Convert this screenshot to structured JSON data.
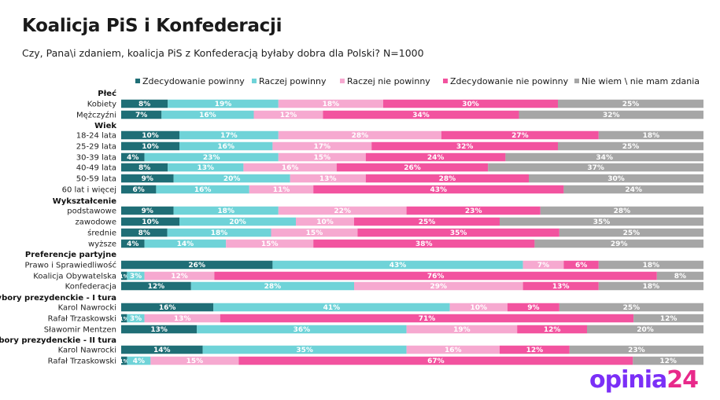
{
  "title": "Koalicja PiS i Konfederacji",
  "subtitle": "Czy, Pana\\i zdaniem, koalicja PiS z Konfederacją byłaby dobra dla Polski? N=1000",
  "brand": {
    "name": "opinia",
    "suffix": "24"
  },
  "chart_data": {
    "type": "bar",
    "orientation": "horizontal-stacked-100",
    "title": "Koalicja PiS i Konfederacji",
    "legend_position": "top",
    "series": [
      {
        "name": "Zdecydowanie powinny",
        "color": "#1f6e76"
      },
      {
        "name": "Raczej powinny",
        "color": "#6fd3d8"
      },
      {
        "name": "Raczej nie powinny",
        "color": "#f6a9d0"
      },
      {
        "name": "Zdecydowanie nie powinny",
        "color": "#f2539f"
      },
      {
        "name": "Nie wiem \\ nie mam zdania",
        "color": "#a6a6a6"
      }
    ],
    "groups": [
      {
        "title": "Płeć",
        "rows": [
          {
            "label": "Kobiety",
            "values": [
              8,
              19,
              18,
              30,
              25
            ]
          },
          {
            "label": "Mężczyźni",
            "values": [
              7,
              16,
              12,
              34,
              32
            ]
          }
        ]
      },
      {
        "title": "Wiek",
        "rows": [
          {
            "label": "18-24 lata",
            "values": [
              10,
              17,
              28,
              27,
              18
            ]
          },
          {
            "label": "25-29 lata",
            "values": [
              10,
              16,
              17,
              32,
              25
            ]
          },
          {
            "label": "30-39 lata",
            "values": [
              4,
              23,
              15,
              24,
              34
            ]
          },
          {
            "label": "40-49 lata",
            "values": [
              8,
              13,
              16,
              26,
              37
            ]
          },
          {
            "label": "50-59 lata",
            "values": [
              9,
              20,
              13,
              28,
              30
            ]
          },
          {
            "label": "60 lat i więcej",
            "values": [
              6,
              16,
              11,
              43,
              24
            ]
          }
        ]
      },
      {
        "title": "Wykształcenie",
        "rows": [
          {
            "label": "podstawowe",
            "values": [
              9,
              18,
              22,
              23,
              28
            ]
          },
          {
            "label": "zawodowe",
            "values": [
              10,
              20,
              10,
              25,
              35
            ]
          },
          {
            "label": "średnie",
            "values": [
              8,
              18,
              15,
              35,
              25
            ]
          },
          {
            "label": "wyższe",
            "values": [
              4,
              14,
              15,
              38,
              29
            ]
          }
        ]
      },
      {
        "title": "Preferencje partyjne",
        "rows": [
          {
            "label": "Prawo i Sprawiedliwość",
            "values": [
              26,
              43,
              7,
              6,
              18
            ]
          },
          {
            "label": "Koalicja Obywatelska",
            "values": [
              1,
              3,
              12,
              76,
              8
            ]
          },
          {
            "label": "Konfederacja",
            "values": [
              12,
              28,
              29,
              13,
              18
            ]
          }
        ]
      },
      {
        "title": "Wybory prezydenckie - I tura",
        "rows": [
          {
            "label": "Karol Nawrocki",
            "values": [
              16,
              41,
              10,
              9,
              25
            ]
          },
          {
            "label": "Rafał Trzaskowski",
            "values": [
              1,
              3,
              13,
              71,
              12
            ]
          },
          {
            "label": "Sławomir Mentzen",
            "values": [
              13,
              36,
              19,
              12,
              20
            ]
          }
        ]
      },
      {
        "title": "Wybory prezydenckie - II tura",
        "rows": [
          {
            "label": "Karol Nawrocki",
            "values": [
              14,
              35,
              16,
              12,
              23
            ]
          },
          {
            "label": "Rafał Trzaskowski",
            "values": [
              1,
              4,
              15,
              67,
              12
            ]
          }
        ]
      }
    ],
    "value_suffix": "%"
  }
}
